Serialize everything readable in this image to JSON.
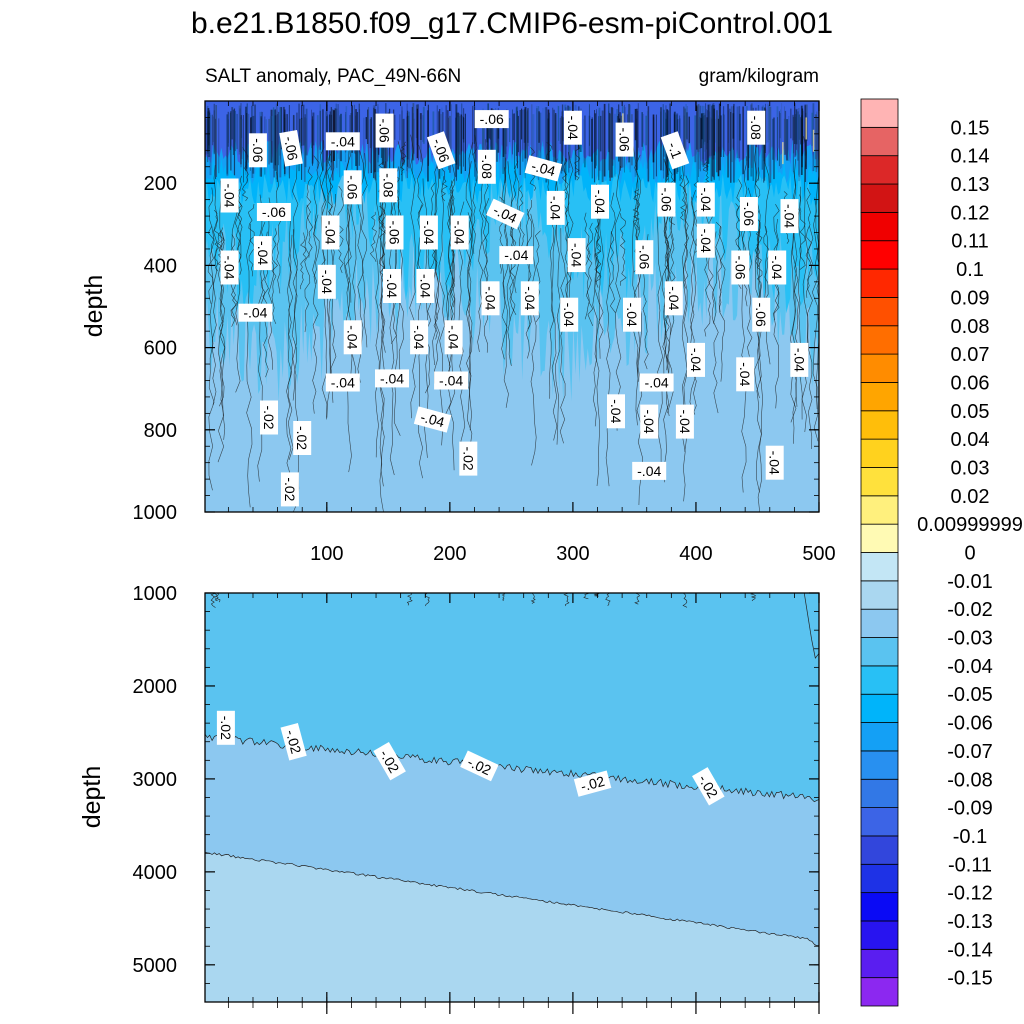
{
  "chart_data": {
    "type": "contour",
    "title": "b.e21.B1850.f09_g17.CMIP6-esm-piControl.001",
    "subtitle_left": "SALT anomaly, PAC_49N-66N",
    "subtitle_right": "gram/kilogram",
    "ylabel": "depth",
    "x_ticks": [
      "100",
      "200",
      "300",
      "400",
      "500"
    ],
    "x_values": [
      100,
      200,
      300,
      400,
      500
    ],
    "xlim": [
      1,
      500
    ],
    "upper_panel": {
      "ylim": [
        0,
        1000
      ],
      "y_ticks": [
        "200",
        "400",
        "600",
        "800",
        "1000"
      ],
      "y_values": [
        200,
        400,
        600,
        800,
        1000
      ],
      "contour_labels": [
        {
          "t": "-.06",
          "x": 234,
          "y": 44,
          "r": 0
        },
        {
          "t": "-.04",
          "x": 300,
          "y": 65,
          "r": 90
        },
        {
          "t": "-.08",
          "x": 449,
          "y": 65,
          "r": 90
        },
        {
          "t": "-.06",
          "x": 147,
          "y": 72,
          "r": 90
        },
        {
          "t": "-.06",
          "x": 342,
          "y": 94,
          "r": 90
        },
        {
          "t": "-.04",
          "x": 113,
          "y": 98,
          "r": 0
        },
        {
          "t": "-.06",
          "x": 71,
          "y": 115,
          "r": 80
        },
        {
          "t": "-.06",
          "x": 44,
          "y": 120,
          "r": 90
        },
        {
          "t": "-.06",
          "x": 193,
          "y": 120,
          "r": 70
        },
        {
          "t": "-.1",
          "x": 383,
          "y": 120,
          "r": 70
        },
        {
          "t": "-.08",
          "x": 230,
          "y": 160,
          "r": 90
        },
        {
          "t": "-.04",
          "x": 276,
          "y": 164,
          "r": 15
        },
        {
          "t": "-.08",
          "x": 150,
          "y": 205,
          "r": 90
        },
        {
          "t": "-.06",
          "x": 121,
          "y": 210,
          "r": 90
        },
        {
          "t": "-.04",
          "x": 21,
          "y": 230,
          "r": 90
        },
        {
          "t": "-.04",
          "x": 322,
          "y": 245,
          "r": 90
        },
        {
          "t": "-.06",
          "x": 376,
          "y": 240,
          "r": 90
        },
        {
          "t": "-.04",
          "x": 408,
          "y": 240,
          "r": 90
        },
        {
          "t": "-.04",
          "x": 286,
          "y": 260,
          "r": 90
        },
        {
          "t": "-.06",
          "x": 57,
          "y": 270,
          "r": 0
        },
        {
          "t": "-.04",
          "x": 245,
          "y": 275,
          "r": 25
        },
        {
          "t": "-.06",
          "x": 443,
          "y": 275,
          "r": 90
        },
        {
          "t": "-.04",
          "x": 476,
          "y": 280,
          "r": 90
        },
        {
          "t": "-.04",
          "x": 103,
          "y": 320,
          "r": 90
        },
        {
          "t": "-.06",
          "x": 155,
          "y": 320,
          "r": 90
        },
        {
          "t": "-.04",
          "x": 183,
          "y": 320,
          "r": 90
        },
        {
          "t": "-.04",
          "x": 208,
          "y": 320,
          "r": 90
        },
        {
          "t": "-.04",
          "x": 408,
          "y": 340,
          "r": 90
        },
        {
          "t": "-.04",
          "x": 48,
          "y": 370,
          "r": 90
        },
        {
          "t": "-.04",
          "x": 254,
          "y": 375,
          "r": 0
        },
        {
          "t": "-.04",
          "x": 303,
          "y": 375,
          "r": 90
        },
        {
          "t": "-.06",
          "x": 358,
          "y": 380,
          "r": 90
        },
        {
          "t": "-.04",
          "x": 21,
          "y": 405,
          "r": 90
        },
        {
          "t": "-.06",
          "x": 436,
          "y": 405,
          "r": 90
        },
        {
          "t": "-.04",
          "x": 466,
          "y": 405,
          "r": 90
        },
        {
          "t": "-.04",
          "x": 100,
          "y": 440,
          "r": 90
        },
        {
          "t": "-.04",
          "x": 153,
          "y": 450,
          "r": 90
        },
        {
          "t": "-.04",
          "x": 180,
          "y": 450,
          "r": 90
        },
        {
          "t": "-.04",
          "x": 233,
          "y": 480,
          "r": 90
        },
        {
          "t": "-.04",
          "x": 265,
          "y": 480,
          "r": 90
        },
        {
          "t": "-.04",
          "x": 382,
          "y": 480,
          "r": 90
        },
        {
          "t": "-.04",
          "x": 42,
          "y": 515,
          "r": 0
        },
        {
          "t": "-.04",
          "x": 297,
          "y": 520,
          "r": 90
        },
        {
          "t": "-.04",
          "x": 348,
          "y": 520,
          "r": 90
        },
        {
          "t": "-.06",
          "x": 453,
          "y": 520,
          "r": 90
        },
        {
          "t": "-.04",
          "x": 121,
          "y": 575,
          "r": 90
        },
        {
          "t": "-.04",
          "x": 175,
          "y": 575,
          "r": 90
        },
        {
          "t": "-.04",
          "x": 203,
          "y": 575,
          "r": 90
        },
        {
          "t": "-.04",
          "x": 400,
          "y": 630,
          "r": 90
        },
        {
          "t": "-.04",
          "x": 484,
          "y": 630,
          "r": 90
        },
        {
          "t": "-.04",
          "x": 440,
          "y": 665,
          "r": 90
        },
        {
          "t": "-.04",
          "x": 153,
          "y": 675,
          "r": 0
        },
        {
          "t": "-.04",
          "x": 201,
          "y": 680,
          "r": 0
        },
        {
          "t": "-.04",
          "x": 113,
          "y": 685,
          "r": 0
        },
        {
          "t": "-.04",
          "x": 368,
          "y": 685,
          "r": 0
        },
        {
          "t": "-.04",
          "x": 335,
          "y": 755,
          "r": 90
        },
        {
          "t": "-.02",
          "x": 53,
          "y": 770,
          "r": 90
        },
        {
          "t": "-.04",
          "x": 186,
          "y": 775,
          "r": 15
        },
        {
          "t": "-.04",
          "x": 362,
          "y": 780,
          "r": 90
        },
        {
          "t": "-.04",
          "x": 391,
          "y": 780,
          "r": 90
        },
        {
          "t": "-.02",
          "x": 80,
          "y": 820,
          "r": 90
        },
        {
          "t": "-.02",
          "x": 215,
          "y": 870,
          "r": 90
        },
        {
          "t": "-.04",
          "x": 362,
          "y": 900,
          "r": 0
        },
        {
          "t": "-.04",
          "x": 464,
          "y": 880,
          "r": 90
        },
        {
          "t": "-.02",
          "x": 70,
          "y": 945,
          "r": 90
        }
      ]
    },
    "lower_panel": {
      "ylim": [
        1000,
        5400
      ],
      "y_ticks": [
        "1000",
        "2000",
        "3000",
        "4000",
        "5000"
      ],
      "y_values": [
        1000,
        2000,
        3000,
        4000,
        5000
      ],
      "contour_labels": [
        {
          "t": "-.02",
          "x": 18,
          "y": 2450,
          "r": 90
        },
        {
          "t": "-.02",
          "x": 73,
          "y": 2600,
          "r": 75
        },
        {
          "t": "-.02",
          "x": 151,
          "y": 2810,
          "r": 60
        },
        {
          "t": "-.02",
          "x": 224,
          "y": 2860,
          "r": 25
        },
        {
          "t": "-.02",
          "x": 316,
          "y": 3050,
          "r": -15
        },
        {
          "t": "-.02",
          "x": 410,
          "y": 3080,
          "r": 60
        }
      ]
    },
    "colorbar": {
      "labels": [
        "-0.15",
        "-0.14",
        "-0.13",
        "-0.12",
        "-0.11",
        "-0.1",
        "-0.09",
        "-0.08",
        "-0.07",
        "-0.06",
        "-0.05",
        "-0.04",
        "-0.03",
        "-0.02",
        "-0.01",
        "0",
        "0.00999999",
        "0.02",
        "0.03",
        "0.04",
        "0.05",
        "0.06",
        "0.07",
        "0.08",
        "0.09",
        "0.1",
        "0.11",
        "0.12",
        "0.13",
        "0.14",
        "0.15"
      ],
      "colors": [
        "#8c28f0",
        "#5a1ef0",
        "#2814f0",
        "#0a0af5",
        "#1e32e6",
        "#3246dc",
        "#3c64e6",
        "#3278e6",
        "#2890f0",
        "#14a0f5",
        "#00b4fa",
        "#28c0f5",
        "#5ac3f0",
        "#8cc8f0",
        "#aad7f0",
        "#c3e6f5",
        "#fffab4",
        "#fff07d",
        "#ffe13c",
        "#ffd21e",
        "#ffbe0a",
        "#ffa500",
        "#ff8c00",
        "#ff6e00",
        "#ff5000",
        "#ff2800",
        "#ff0000",
        "#f00000",
        "#d21414",
        "#dc2828",
        "#e66464",
        "#ffb4b4"
      ]
    }
  }
}
